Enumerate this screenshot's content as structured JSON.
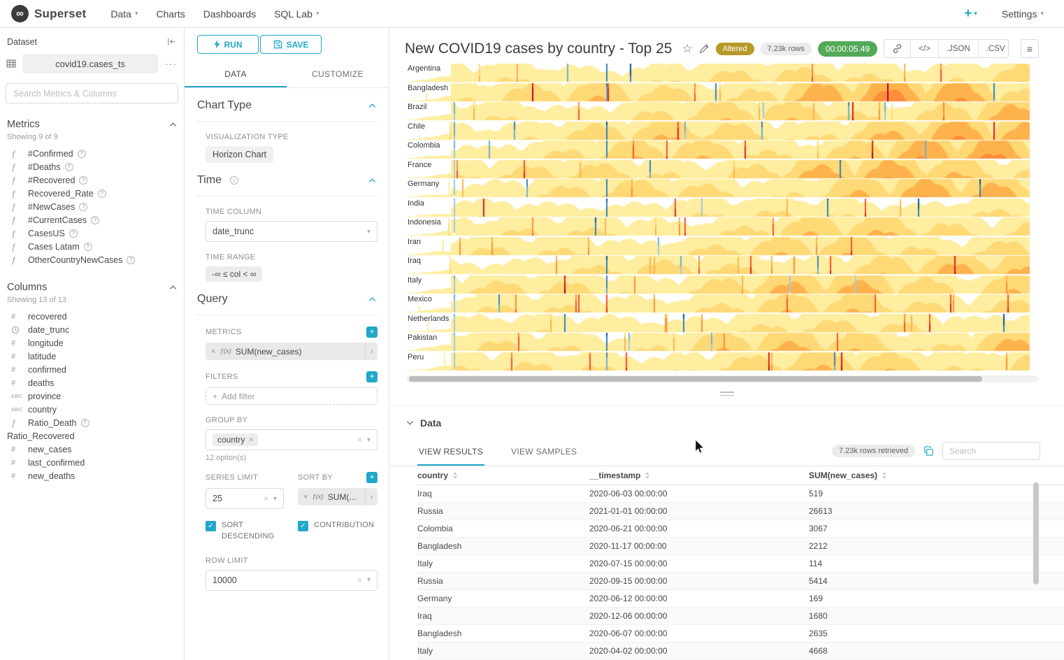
{
  "colors": {
    "primary": "#20a7c9",
    "altered_badge": "#b59a28",
    "timer_badge": "#53a957"
  },
  "navbar": {
    "brand": "Superset",
    "items": [
      {
        "label": "Data",
        "caret": true
      },
      {
        "label": "Charts",
        "caret": false
      },
      {
        "label": "Dashboards",
        "caret": false
      },
      {
        "label": "SQL Lab",
        "caret": true
      }
    ],
    "new_button": "+",
    "settings": "Settings"
  },
  "dataset_panel": {
    "title": "Dataset",
    "dataset_name": "covid19.cases_ts",
    "search_placeholder": "Search Metrics & Columns",
    "metrics": {
      "title": "Metrics",
      "showing": "Showing 9 of 9",
      "items": [
        "#Confirmed",
        "#Deaths",
        "#Recovered",
        "Recovered_Rate",
        "#NewCases",
        "#CurrentCases",
        "CasesUS",
        "Cases Latam",
        "OtherCountryNewCases"
      ]
    },
    "columns": {
      "title": "Columns",
      "showing": "Showing 13 of 13",
      "items": [
        {
          "name": "recovered",
          "type": "#",
          "help": false
        },
        {
          "name": "date_trunc",
          "type": "time",
          "help": false
        },
        {
          "name": "longitude",
          "type": "#",
          "help": false
        },
        {
          "name": "latitude",
          "type": "#",
          "help": false
        },
        {
          "name": "confirmed",
          "type": "#",
          "help": false
        },
        {
          "name": "deaths",
          "type": "#",
          "help": false
        },
        {
          "name": "province",
          "type": "ABC",
          "help": false
        },
        {
          "name": "country",
          "type": "ABC",
          "help": false
        },
        {
          "name": "Ratio_Death",
          "type": "f",
          "help": true
        },
        {
          "name": "Ratio_Recovered",
          "type": "",
          "help": false
        },
        {
          "name": "new_cases",
          "type": "#",
          "help": false
        },
        {
          "name": "last_confirmed",
          "type": "#",
          "help": false
        },
        {
          "name": "new_deaths",
          "type": "#",
          "help": false
        }
      ]
    }
  },
  "control_panel": {
    "run_label": "RUN",
    "save_label": "SAVE",
    "tabs": [
      "DATA",
      "CUSTOMIZE"
    ],
    "chart_type": {
      "title": "Chart Type",
      "viz_label": "VISUALIZATION TYPE",
      "viz_value": "Horizon Chart"
    },
    "time": {
      "title": "Time",
      "column_label": "TIME COLUMN",
      "column_value": "date_trunc",
      "range_label": "TIME RANGE",
      "range_value": "-∞ ≤ col < ∞"
    },
    "query": {
      "title": "Query",
      "metrics_label": "METRICS",
      "metric_fx": "ƒ(x)",
      "metric_value": "SUM(new_cases)",
      "filters_label": "FILTERS",
      "add_filter_label": "Add filter",
      "group_by_label": "GROUP BY",
      "group_by_value": "country",
      "options_hint": "12 option(s)",
      "series_limit_label": "SERIES LIMIT",
      "series_limit_value": "25",
      "sort_by_label": "SORT BY",
      "sort_by_fx": "ƒ(x)",
      "sort_by_value": "SUM(...",
      "sort_descending_label": "SORT DESCENDING",
      "contribution_label": "CONTRIBUTION",
      "row_limit_label": "ROW LIMIT",
      "row_limit_value": "10000"
    }
  },
  "chart_header": {
    "title": "New COVID19 cases by country - Top 25",
    "altered_badge": "Altered",
    "rows_badge": "7.23k rows",
    "timer_badge": "00:00:05.49",
    "code_label": "</>",
    "json_label": ".JSON",
    "csv_label": ".CSV"
  },
  "chart_data": {
    "type": "horizon",
    "title": "New COVID19 cases by country - Top 25",
    "metric": "SUM(new_cases)",
    "series_limit": 25,
    "categories": [
      "Argentina",
      "Bangladesh",
      "Brazil",
      "Chile",
      "Colombia",
      "France",
      "Germany",
      "India",
      "Indonesia",
      "Iran",
      "Iraq",
      "Italy",
      "Mexico",
      "Netherlands",
      "Pakistan",
      "Peru"
    ],
    "positive_palette": [
      "#ffeda0",
      "#fed976",
      "#feb24c",
      "#fd8d3c",
      "#fc4e2a",
      "#e31a1c",
      "#b10026"
    ],
    "negative_palette": [
      "#9ecae1",
      "#6baed6",
      "#3182bd",
      "#08519c"
    ]
  },
  "data_panel": {
    "title": "Data",
    "tabs": [
      "VIEW RESULTS",
      "VIEW SAMPLES"
    ],
    "rows_retrieved": "7.23k rows retrieved",
    "search_placeholder": "Search",
    "table": {
      "headers": [
        "country",
        "__timestamp",
        "SUM(new_cases)"
      ],
      "rows": [
        [
          "Iraq",
          "2020-06-03 00:00:00",
          "519"
        ],
        [
          "Russia",
          "2021-01-01 00:00:00",
          "26613"
        ],
        [
          "Colombia",
          "2020-06-21 00:00:00",
          "3067"
        ],
        [
          "Bangladesh",
          "2020-11-17 00:00:00",
          "2212"
        ],
        [
          "Italy",
          "2020-07-15 00:00:00",
          "114"
        ],
        [
          "Russia",
          "2020-09-15 00:00:00",
          "5414"
        ],
        [
          "Germany",
          "2020-06-12 00:00:00",
          "169"
        ],
        [
          "Iraq",
          "2020-12-06 00:00:00",
          "1680"
        ],
        [
          "Bangladesh",
          "2020-06-07 00:00:00",
          "2635"
        ],
        [
          "Italy",
          "2020-04-02 00:00:00",
          "4668"
        ]
      ]
    }
  }
}
